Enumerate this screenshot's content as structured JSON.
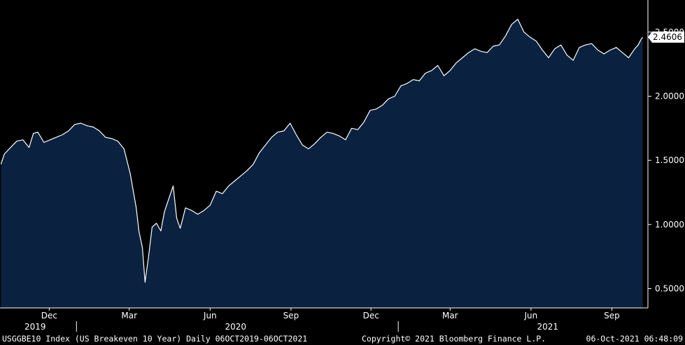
{
  "chart_data": {
    "type": "area",
    "title": "",
    "xlabel": "",
    "ylabel": "",
    "ylim": [
      0.35,
      2.75
    ],
    "y_ticks": [
      "0.5000",
      "1.0000",
      "1.5000",
      "2.0000",
      "2.5000"
    ],
    "y_tick_values": [
      0.5,
      1.0,
      1.5,
      2.0,
      2.5
    ],
    "x_month_ticks": [
      "Dec",
      "Mar",
      "Jun",
      "Sep",
      "Dec",
      "Mar",
      "Jun",
      "Sep"
    ],
    "x_month_dates": [
      "2019-12-01",
      "2020-03-01",
      "2020-06-01",
      "2020-09-01",
      "2020-12-01",
      "2021-03-01",
      "2021-06-01",
      "2021-09-01"
    ],
    "x_years": [
      "2019",
      "2020",
      "2021"
    ],
    "x_year_dates": [
      "2019-11-15",
      "2020-06-30",
      "2021-06-20"
    ],
    "x_year_separator_dates": [
      "2020-01-01",
      "2021-01-01"
    ],
    "xlim": [
      "2019-10-06",
      "2021-10-12"
    ],
    "last_value_label": "2.4606",
    "fill_color": "#0a2240",
    "line_color": "#ffffff",
    "grid": false,
    "series": [
      {
        "values": [
          [
            "2019-10-07",
            1.47
          ],
          [
            "2019-10-11",
            1.55
          ],
          [
            "2019-10-18",
            1.6
          ],
          [
            "2019-10-25",
            1.65
          ],
          [
            "2019-11-01",
            1.66
          ],
          [
            "2019-11-08",
            1.6
          ],
          [
            "2019-11-13",
            1.71
          ],
          [
            "2019-11-18",
            1.72
          ],
          [
            "2019-11-25",
            1.64
          ],
          [
            "2019-12-02",
            1.66
          ],
          [
            "2019-12-09",
            1.68
          ],
          [
            "2019-12-16",
            1.7
          ],
          [
            "2019-12-23",
            1.73
          ],
          [
            "2019-12-30",
            1.78
          ],
          [
            "2020-01-06",
            1.79
          ],
          [
            "2020-01-13",
            1.77
          ],
          [
            "2020-01-20",
            1.76
          ],
          [
            "2020-01-27",
            1.73
          ],
          [
            "2020-02-03",
            1.68
          ],
          [
            "2020-02-10",
            1.67
          ],
          [
            "2020-02-17",
            1.65
          ],
          [
            "2020-02-24",
            1.59
          ],
          [
            "2020-03-02",
            1.4
          ],
          [
            "2020-03-09",
            1.13
          ],
          [
            "2020-03-12",
            0.95
          ],
          [
            "2020-03-16",
            0.82
          ],
          [
            "2020-03-19",
            0.55
          ],
          [
            "2020-03-23",
            0.75
          ],
          [
            "2020-03-27",
            0.98
          ],
          [
            "2020-04-01",
            1.01
          ],
          [
            "2020-04-06",
            0.95
          ],
          [
            "2020-04-10",
            1.1
          ],
          [
            "2020-04-15",
            1.2
          ],
          [
            "2020-04-20",
            1.3
          ],
          [
            "2020-04-24",
            1.05
          ],
          [
            "2020-04-28",
            0.97
          ],
          [
            "2020-05-04",
            1.13
          ],
          [
            "2020-05-11",
            1.11
          ],
          [
            "2020-05-18",
            1.08
          ],
          [
            "2020-05-25",
            1.11
          ],
          [
            "2020-06-01",
            1.15
          ],
          [
            "2020-06-08",
            1.26
          ],
          [
            "2020-06-15",
            1.24
          ],
          [
            "2020-06-22",
            1.3
          ],
          [
            "2020-06-29",
            1.34
          ],
          [
            "2020-07-06",
            1.38
          ],
          [
            "2020-07-13",
            1.42
          ],
          [
            "2020-07-20",
            1.47
          ],
          [
            "2020-07-27",
            1.56
          ],
          [
            "2020-08-03",
            1.62
          ],
          [
            "2020-08-10",
            1.68
          ],
          [
            "2020-08-17",
            1.72
          ],
          [
            "2020-08-24",
            1.73
          ],
          [
            "2020-08-31",
            1.79
          ],
          [
            "2020-09-07",
            1.7
          ],
          [
            "2020-09-14",
            1.62
          ],
          [
            "2020-09-21",
            1.59
          ],
          [
            "2020-09-28",
            1.63
          ],
          [
            "2020-10-05",
            1.68
          ],
          [
            "2020-10-12",
            1.72
          ],
          [
            "2020-10-19",
            1.71
          ],
          [
            "2020-10-26",
            1.69
          ],
          [
            "2020-11-02",
            1.66
          ],
          [
            "2020-11-09",
            1.75
          ],
          [
            "2020-11-16",
            1.74
          ],
          [
            "2020-11-23",
            1.8
          ],
          [
            "2020-11-30",
            1.89
          ],
          [
            "2020-12-07",
            1.9
          ],
          [
            "2020-12-14",
            1.93
          ],
          [
            "2020-12-21",
            1.98
          ],
          [
            "2020-12-28",
            2.0
          ],
          [
            "2021-01-04",
            2.08
          ],
          [
            "2021-01-11",
            2.1
          ],
          [
            "2021-01-18",
            2.13
          ],
          [
            "2021-01-25",
            2.12
          ],
          [
            "2021-02-01",
            2.18
          ],
          [
            "2021-02-08",
            2.2
          ],
          [
            "2021-02-15",
            2.24
          ],
          [
            "2021-02-22",
            2.16
          ],
          [
            "2021-03-01",
            2.2
          ],
          [
            "2021-03-08",
            2.26
          ],
          [
            "2021-03-15",
            2.3
          ],
          [
            "2021-03-22",
            2.34
          ],
          [
            "2021-03-29",
            2.37
          ],
          [
            "2021-04-05",
            2.35
          ],
          [
            "2021-04-12",
            2.34
          ],
          [
            "2021-04-19",
            2.39
          ],
          [
            "2021-04-26",
            2.4
          ],
          [
            "2021-05-03",
            2.47
          ],
          [
            "2021-05-10",
            2.56
          ],
          [
            "2021-05-17",
            2.6
          ],
          [
            "2021-05-24",
            2.5
          ],
          [
            "2021-05-31",
            2.46
          ],
          [
            "2021-06-07",
            2.43
          ],
          [
            "2021-06-14",
            2.36
          ],
          [
            "2021-06-21",
            2.3
          ],
          [
            "2021-06-28",
            2.37
          ],
          [
            "2021-07-05",
            2.4
          ],
          [
            "2021-07-12",
            2.32
          ],
          [
            "2021-07-19",
            2.28
          ],
          [
            "2021-07-26",
            2.38
          ],
          [
            "2021-08-02",
            2.4
          ],
          [
            "2021-08-09",
            2.41
          ],
          [
            "2021-08-16",
            2.36
          ],
          [
            "2021-08-23",
            2.33
          ],
          [
            "2021-08-30",
            2.36
          ],
          [
            "2021-09-06",
            2.38
          ],
          [
            "2021-09-13",
            2.34
          ],
          [
            "2021-09-20",
            2.3
          ],
          [
            "2021-09-27",
            2.37
          ],
          [
            "2021-10-01",
            2.4
          ],
          [
            "2021-10-04",
            2.44
          ],
          [
            "2021-10-06",
            2.4606
          ]
        ]
      }
    ]
  },
  "footer": {
    "ticker": "USGGBE10 Index (US Breakeven 10 Year)  Daily 06OCT2019-06OCT2021",
    "copyright": "Copyright© 2021 Bloomberg Finance L.P.",
    "timestamp": "06-Oct-2021 06:48:09"
  }
}
